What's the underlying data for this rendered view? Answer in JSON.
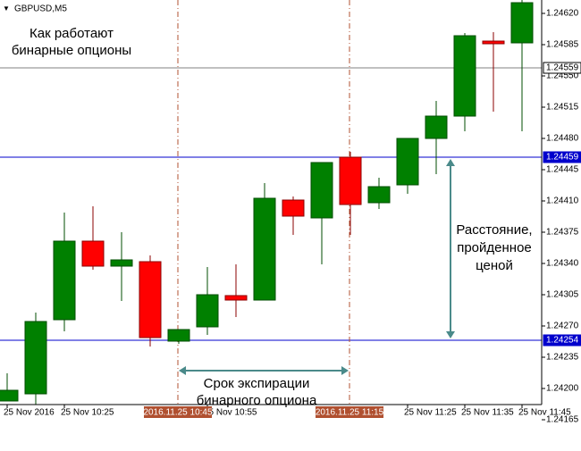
{
  "chart_data": {
    "type": "candlestick",
    "title": "GBPUSD,M5",
    "categories": [
      "25 Nov 2016",
      null,
      "25 Nov 10:25",
      null,
      null,
      null,
      null,
      "25 Nov 10:55",
      null,
      null,
      null,
      null,
      null,
      null,
      "25 Nov 11:25",
      null,
      "25 Nov 11:35",
      null,
      "25 Nov 11:45"
    ],
    "open": [
      1.24186,
      1.24194,
      1.24277,
      1.24365,
      1.24337,
      1.24342,
      1.24253,
      1.24269,
      1.24304,
      1.24299,
      1.24411,
      1.24391,
      1.24459,
      1.24408,
      1.24428,
      1.2448,
      1.24505,
      1.24589,
      1.24587
    ],
    "high": [
      1.24217,
      1.24285,
      1.24397,
      1.24404,
      1.24375,
      1.24349,
      1.24266,
      1.24336,
      1.24339,
      1.2443,
      1.24415,
      1.24453,
      1.24465,
      1.24436,
      1.2448,
      1.24522,
      1.24598,
      1.24599,
      1.24635
    ],
    "low": [
      1.24186,
      1.24176,
      1.24264,
      1.24333,
      1.24298,
      1.24247,
      1.2425,
      1.2426,
      1.2428,
      1.24299,
      1.24372,
      1.24339,
      1.24372,
      1.24401,
      1.24418,
      1.2444,
      1.24488,
      1.2451,
      1.24488
    ],
    "close": [
      1.24198,
      1.24275,
      1.24365,
      1.24337,
      1.24344,
      1.24257,
      1.24266,
      1.24305,
      1.24299,
      1.24413,
      1.24393,
      1.24453,
      1.24406,
      1.24426,
      1.2448,
      1.24505,
      1.24595,
      1.24586,
      1.24632
    ],
    "up_color": "#008000",
    "down_color": "#ff0000",
    "ylim": [
      1.24165,
      1.24635
    ],
    "yticks": [
      {
        "value": 1.2462,
        "label": "1.24620"
      },
      {
        "value": 1.24585,
        "label": "1.24585"
      },
      {
        "value": 1.2455,
        "label": "1.24550"
      },
      {
        "value": 1.24515,
        "label": "1.24515"
      },
      {
        "value": 1.2448,
        "label": "1.24480"
      },
      {
        "value": 1.24445,
        "label": "1.24445"
      },
      {
        "value": 1.2441,
        "label": "1.24410"
      },
      {
        "value": 1.24375,
        "label": "1.24375"
      },
      {
        "value": 1.2434,
        "label": "1.24340"
      },
      {
        "value": 1.24305,
        "label": "1.24305"
      },
      {
        "value": 1.2427,
        "label": "1.24270"
      },
      {
        "value": 1.24235,
        "label": "1.24235"
      },
      {
        "value": 1.242,
        "label": "1.24200"
      },
      {
        "value": 1.24165,
        "label": "1.24165"
      }
    ],
    "hlines": [
      {
        "value": 1.24559,
        "label": "1.24559",
        "color": "#808080"
      },
      {
        "value": 1.24459,
        "label": "1.24459",
        "color": "#0000cc"
      },
      {
        "value": 1.24254,
        "label": "1.24254",
        "color": "#0000cc"
      }
    ],
    "vlines": [
      {
        "label": "2016.11.25 10:45",
        "color": "#b05030"
      },
      {
        "label": "2016.11.25 11:15",
        "color": "#b05030"
      }
    ],
    "annotations": {
      "heading": [
        "Как работают",
        "бинарные опционы"
      ],
      "distance": [
        "Расстояние,",
        "пройденное",
        "ценой"
      ],
      "expiry": [
        "Срок экспирации",
        "бинарного опциона"
      ]
    },
    "arrow_color": "#4a8a8a"
  }
}
